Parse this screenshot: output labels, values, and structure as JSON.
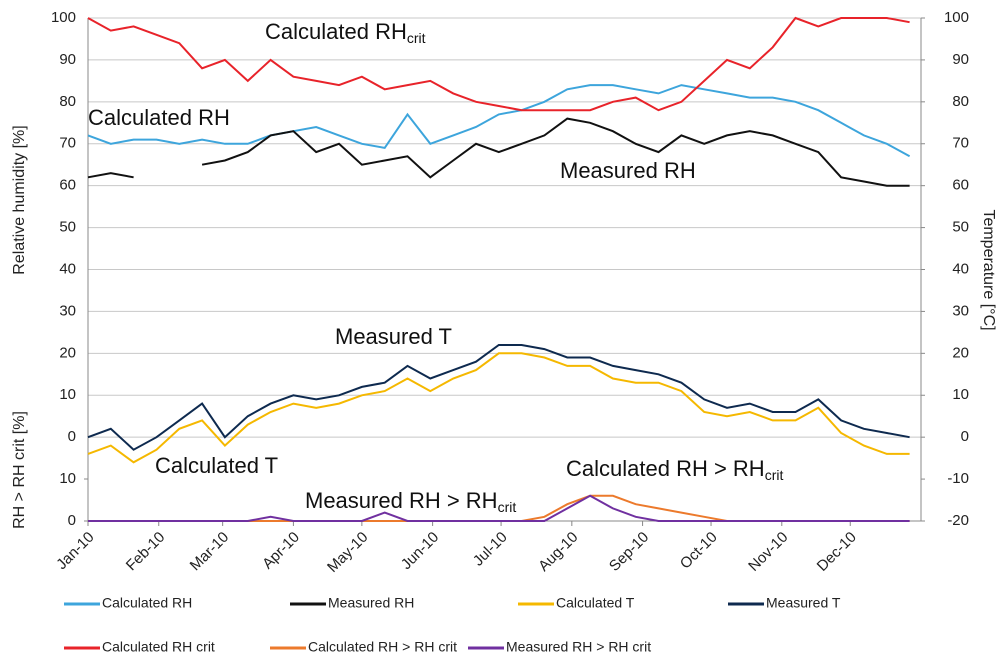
{
  "chart_data": {
    "type": "line",
    "ylabel": "Relative humidity [%]",
    "y2label": "Temperature [°C]",
    "y3label": "RH > RH crit [%]",
    "xlim": [
      0,
      365
    ],
    "xticks": [
      {
        "value": 0,
        "label": "Jan-10"
      },
      {
        "value": 31,
        "label": "Feb-10"
      },
      {
        "value": 59,
        "label": "Mar-10"
      },
      {
        "value": 90,
        "label": "Apr-10"
      },
      {
        "value": 120,
        "label": "May-10"
      },
      {
        "value": 151,
        "label": "Jun-10"
      },
      {
        "value": 181,
        "label": "Jul-10"
      },
      {
        "value": 212,
        "label": "Aug-10"
      },
      {
        "value": 243,
        "label": "Sep-10"
      },
      {
        "value": 273,
        "label": "Oct-10"
      },
      {
        "value": 304,
        "label": "Nov-10"
      },
      {
        "value": 334,
        "label": "Dec-10"
      }
    ],
    "ylim": [
      -20,
      100
    ],
    "yticks": [
      0,
      10,
      20,
      30,
      40,
      50,
      60,
      70,
      80,
      90,
      100
    ],
    "y2lim": [
      -20,
      100
    ],
    "y2ticks": [
      -20,
      -10,
      0,
      10,
      20,
      30,
      40,
      50,
      60,
      70,
      80,
      90,
      100
    ],
    "y3lim": [
      0,
      10
    ],
    "y3ticks": [
      0,
      10
    ],
    "grid": true,
    "x": [
      0,
      10,
      20,
      30,
      40,
      50,
      60,
      70,
      80,
      90,
      100,
      110,
      120,
      130,
      140,
      150,
      160,
      170,
      180,
      190,
      200,
      210,
      220,
      230,
      240,
      250,
      260,
      270,
      280,
      290,
      300,
      310,
      320,
      330,
      340,
      350,
      360
    ],
    "series": [
      {
        "name": "Calculated RH",
        "color": "#3da5dc",
        "axis": "y",
        "values": [
          72,
          70,
          71,
          71,
          70,
          71,
          70,
          70,
          72,
          73,
          74,
          72,
          70,
          69,
          77,
          70,
          72,
          74,
          77,
          78,
          80,
          83,
          84,
          84,
          83,
          82,
          84,
          83,
          82,
          81,
          81,
          80,
          78,
          75,
          72,
          70,
          67
        ]
      },
      {
        "name": "Measured RH",
        "color": "#111111",
        "axis": "y",
        "values": [
          62,
          63,
          62,
          null,
          null,
          65,
          66,
          68,
          72,
          73,
          68,
          70,
          65,
          66,
          67,
          62,
          66,
          70,
          68,
          70,
          72,
          76,
          75,
          73,
          70,
          68,
          72,
          70,
          72,
          73,
          72,
          70,
          68,
          62,
          61,
          60,
          60
        ]
      },
      {
        "name": "Calculated T",
        "color": "#f5b800",
        "axis": "y2",
        "values": [
          -4,
          -2,
          -6,
          -3,
          2,
          4,
          -2,
          3,
          6,
          8,
          7,
          8,
          10,
          11,
          14,
          11,
          14,
          16,
          20,
          20,
          19,
          17,
          17,
          14,
          13,
          13,
          11,
          6,
          5,
          6,
          4,
          4,
          7,
          1,
          -2,
          -4,
          -4
        ]
      },
      {
        "name": "Measured T",
        "color": "#0e2a4f",
        "axis": "y2",
        "values": [
          0,
          2,
          -3,
          0,
          4,
          8,
          0,
          5,
          8,
          10,
          9,
          10,
          12,
          13,
          17,
          14,
          16,
          18,
          22,
          22,
          21,
          19,
          19,
          17,
          16,
          15,
          13,
          9,
          7,
          8,
          6,
          6,
          9,
          4,
          2,
          1,
          0
        ]
      },
      {
        "name": "Calculated RH crit",
        "color": "#e8232a",
        "axis": "y",
        "values": [
          100,
          97,
          98,
          96,
          94,
          88,
          90,
          85,
          90,
          86,
          85,
          84,
          86,
          83,
          84,
          85,
          82,
          80,
          79,
          78,
          78,
          78,
          78,
          80,
          81,
          78,
          80,
          85,
          90,
          88,
          93,
          100,
          98,
          100,
          100,
          100,
          99
        ]
      },
      {
        "name": "Calculated RH > RH crit",
        "color": "#ec7a2c",
        "axis": "y3",
        "values": [
          0,
          0,
          0,
          0,
          0,
          0,
          0,
          0,
          0,
          0,
          0,
          0,
          0,
          0,
          0,
          0,
          0,
          0,
          0,
          0,
          1,
          4,
          6,
          6,
          4,
          3,
          2,
          1,
          0,
          0,
          0,
          0,
          0,
          0,
          0,
          0,
          0
        ]
      },
      {
        "name": "Measured RH > RH crit",
        "color": "#7030a0",
        "axis": "y3",
        "values": [
          0,
          0,
          0,
          0,
          0,
          0,
          0,
          0,
          1,
          0,
          0,
          0,
          0,
          2,
          0,
          0,
          0,
          0,
          0,
          0,
          0,
          3,
          6,
          3,
          1,
          0,
          0,
          0,
          0,
          0,
          0,
          0,
          0,
          0,
          0,
          0,
          0
        ]
      }
    ],
    "annotations": [
      {
        "text": "Calculated RH",
        "sub": "crit"
      },
      {
        "text": "Calculated RH"
      },
      {
        "text": "Measured RH"
      },
      {
        "text": "Measured T"
      },
      {
        "text": "Calculated T"
      },
      {
        "text": "Calculated RH > RH",
        "sub": "crit"
      },
      {
        "text": "Measured RH > RH",
        "sub": "crit"
      }
    ]
  }
}
